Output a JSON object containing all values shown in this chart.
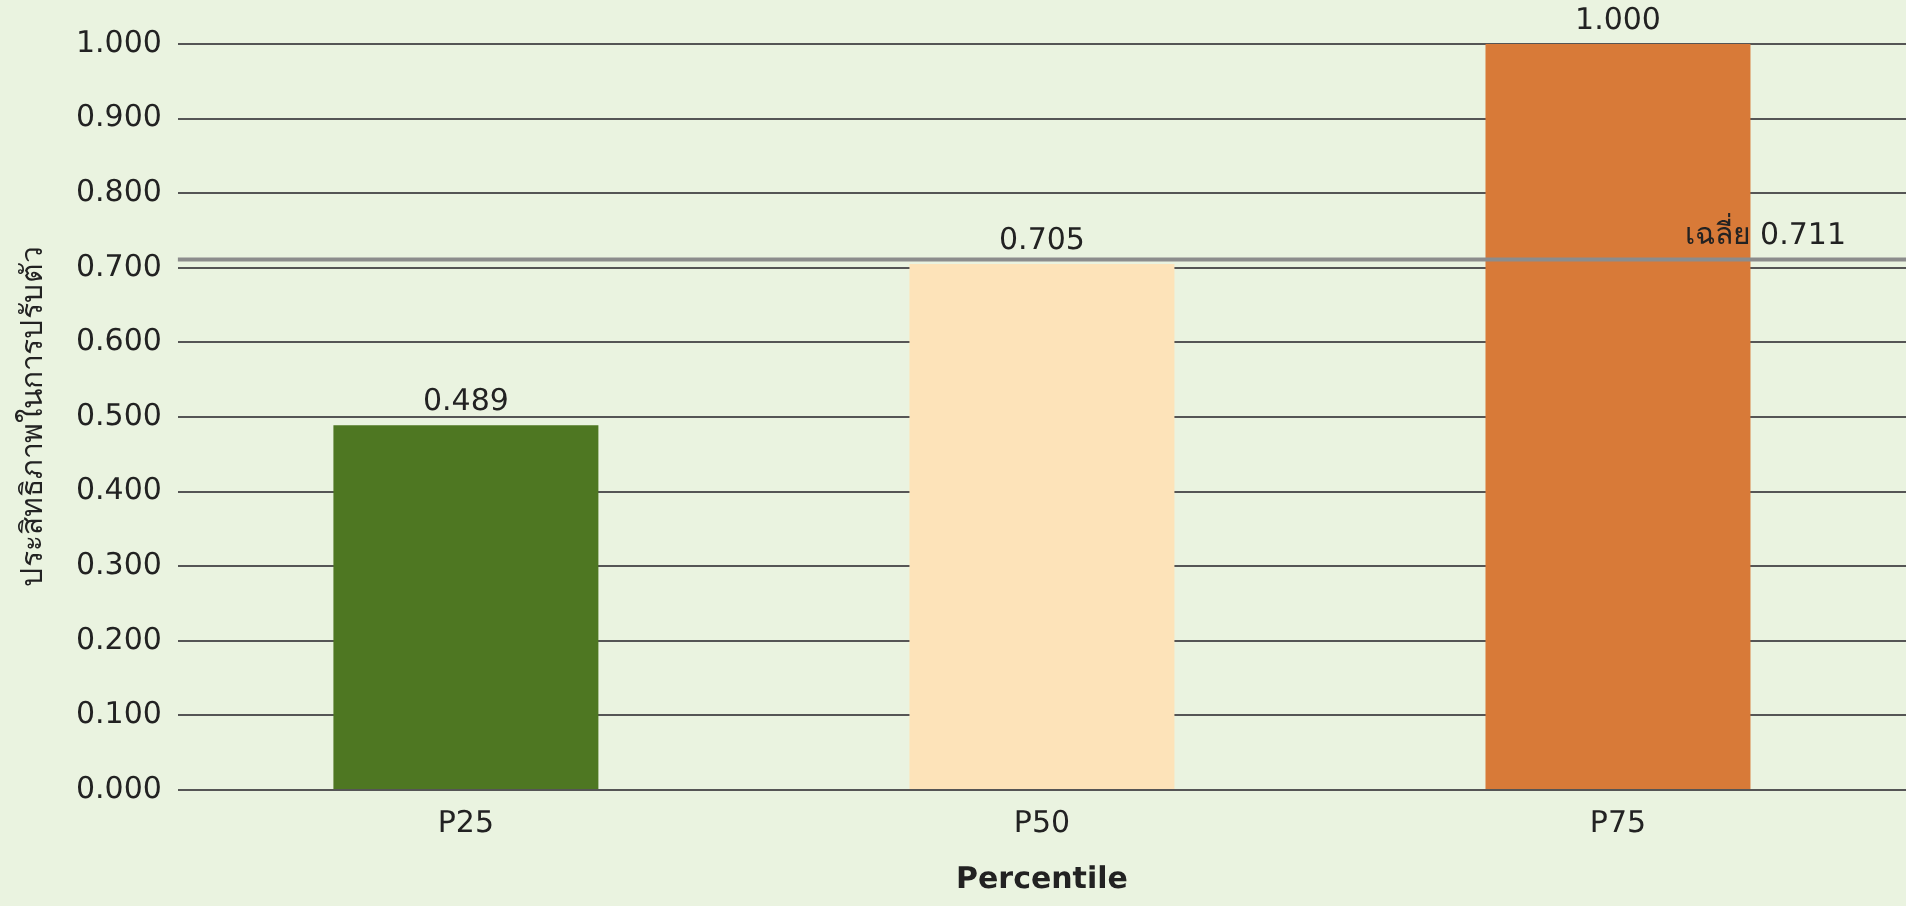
{
  "chart_data": {
    "type": "bar",
    "xlabel": "Percentile",
    "ylabel": "ประสิทธิภาพในการปรับตัว",
    "categories": [
      "P25",
      "P50",
      "P75"
    ],
    "values": [
      0.489,
      0.705,
      1.0
    ],
    "colors": [
      "#4e7722",
      "#fde3b9",
      "#d87a38"
    ],
    "value_labels": [
      "0.489",
      "0.705",
      "1.000"
    ],
    "ylim": [
      0,
      1
    ],
    "yticks": [
      {
        "value": 0,
        "label": "0.000"
      },
      {
        "value": 0.1,
        "label": "0.100"
      },
      {
        "value": 0.2,
        "label": "0.200"
      },
      {
        "value": 0.3,
        "label": "0.300"
      },
      {
        "value": 0.4,
        "label": "0.400"
      },
      {
        "value": 0.5,
        "label": "0.500"
      },
      {
        "value": 0.6,
        "label": "0.600"
      },
      {
        "value": 0.7,
        "label": "0.700"
      },
      {
        "value": 0.8,
        "label": "0.800"
      },
      {
        "value": 0.9,
        "label": "0.900"
      },
      {
        "value": 1,
        "label": "1.000"
      }
    ],
    "ref_lines": [
      {
        "axis": "y",
        "value": 0.711,
        "label": "เฉลี่ย 0.711",
        "color": "#8c8c8c"
      }
    ],
    "grid": "y",
    "legend": false
  }
}
